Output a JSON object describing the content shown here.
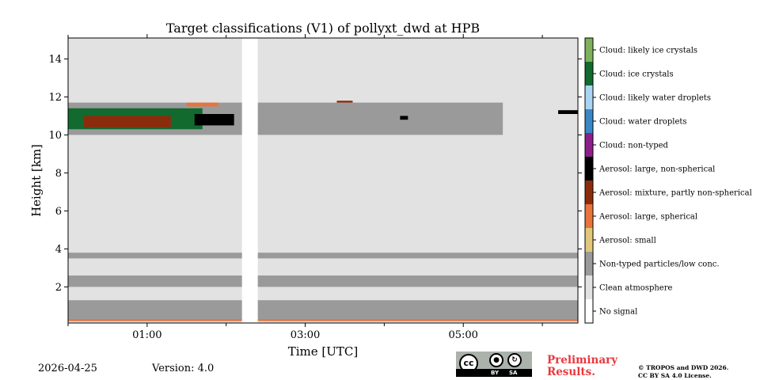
{
  "chart_data": {
    "type": "heatmap",
    "title": "Target classifications (V1) of pollyxt_dwd at HPB",
    "xlabel": "Time [UTC]",
    "ylabel": "Height [km]",
    "xlim_hours": [
      0,
      6.45
    ],
    "ylim_km": [
      0.1,
      15.1
    ],
    "x_ticks": [
      {
        "value": 1,
        "label": "01:00"
      },
      {
        "value": 3,
        "label": "03:00"
      },
      {
        "value": 5,
        "label": "05:00"
      }
    ],
    "x_minor_ticks": [
      0,
      2,
      4,
      6
    ],
    "y_ticks": [
      {
        "value": 2,
        "label": "2"
      },
      {
        "value": 4,
        "label": "4"
      },
      {
        "value": 6,
        "label": "6"
      },
      {
        "value": 8,
        "label": "8"
      },
      {
        "value": 10,
        "label": "10"
      },
      {
        "value": 12,
        "label": "12"
      },
      {
        "value": 14,
        "label": "14"
      }
    ],
    "data_gap_hours": [
      2.2,
      2.4
    ],
    "classes": [
      {
        "label": "No signal",
        "color": "#ffffff"
      },
      {
        "label": "Clean atmosphere",
        "color": "#e2e2e2"
      },
      {
        "label": "Non-typed particles/low conc.",
        "color": "#9a9a9a"
      },
      {
        "label": "Aerosol: small",
        "color": "#e2c77a"
      },
      {
        "label": "Aerosol: large, spherical",
        "color": "#e8743b"
      },
      {
        "label": "Aerosol: mixture, partly non-spherical",
        "color": "#8b2c0c"
      },
      {
        "label": "Aerosol: large, non-spherical",
        "color": "#000000"
      },
      {
        "label": "Cloud: non-typed",
        "color": "#8c1f8a"
      },
      {
        "label": "Cloud: water droplets",
        "color": "#3a87c6"
      },
      {
        "label": "Cloud: likely water droplets",
        "color": "#aad5f2"
      },
      {
        "label": "Cloud: ice crystals",
        "color": "#126a2f"
      },
      {
        "label": "Cloud: likely ice crystals",
        "color": "#7fb05b"
      }
    ],
    "regions": [
      {
        "cls": 2,
        "t0": 0.0,
        "t1": 6.45,
        "h0": 0.2,
        "h1": 1.3
      },
      {
        "cls": 2,
        "t0": 0.0,
        "t1": 6.45,
        "h0": 2.0,
        "h1": 2.6
      },
      {
        "cls": 2,
        "t0": 0.0,
        "t1": 6.45,
        "h0": 3.5,
        "h1": 3.8
      },
      {
        "cls": 2,
        "t0": 0.0,
        "t1": 5.5,
        "h0": 10.0,
        "h1": 11.7
      },
      {
        "cls": 10,
        "t0": 0.0,
        "t1": 1.7,
        "h0": 10.3,
        "h1": 11.4
      },
      {
        "cls": 5,
        "t0": 0.2,
        "t1": 1.3,
        "h0": 10.4,
        "h1": 11.0
      },
      {
        "cls": 6,
        "t0": 1.6,
        "t1": 2.1,
        "h0": 10.5,
        "h1": 11.1
      },
      {
        "cls": 4,
        "t0": 1.5,
        "t1": 1.9,
        "h0": 11.5,
        "h1": 11.7
      },
      {
        "cls": 4,
        "t0": 0.0,
        "t1": 6.45,
        "h0": 0.2,
        "h1": 0.3
      },
      {
        "cls": 6,
        "t0": 4.2,
        "t1": 4.3,
        "h0": 10.8,
        "h1": 11.0
      },
      {
        "cls": 5,
        "t0": 3.4,
        "t1": 3.6,
        "h0": 11.7,
        "h1": 11.8
      },
      {
        "cls": 6,
        "t0": 6.2,
        "t1": 6.45,
        "h0": 11.1,
        "h1": 11.3
      }
    ]
  },
  "footer": {
    "date": "2026-04-25",
    "version": "Version: 4.0",
    "cc_mark": "cc",
    "cc_by": "BY",
    "cc_sa": "SA",
    "preliminary_line1": "Preliminary",
    "preliminary_line2": "Results.",
    "copyright_line1": "© TROPOS and DWD 2026.",
    "copyright_line2": "CC BY SA 4.0 License."
  }
}
